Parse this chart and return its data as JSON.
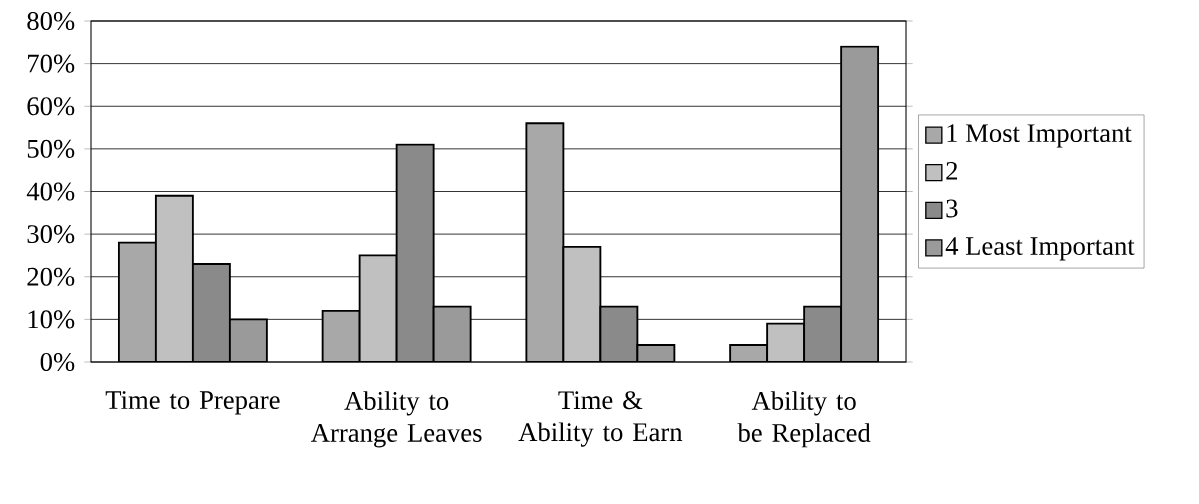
{
  "chart_data": {
    "type": "bar",
    "categories": [
      "Time to Prepare",
      "Ability to Arrange Leaves",
      "Time & Ability to Earn",
      "Ability to be Replaced"
    ],
    "series": [
      {
        "name": "1 Most Important",
        "color": "#a8a8a8",
        "values": [
          28,
          12,
          56,
          4
        ]
      },
      {
        "name": "2",
        "color": "#c0c0c0",
        "values": [
          39,
          25,
          27,
          9
        ]
      },
      {
        "name": "3",
        "color": "#8a8a8a",
        "values": [
          23,
          51,
          13,
          13
        ]
      },
      {
        "name": "4 Least Important",
        "color": "#9a9a9a",
        "values": [
          10,
          13,
          4,
          74
        ]
      }
    ],
    "ylim": [
      0,
      80
    ],
    "yticks": [
      {
        "value": 0,
        "label": "0%"
      },
      {
        "value": 10,
        "label": "10%"
      },
      {
        "value": 20,
        "label": "20%"
      },
      {
        "value": 30,
        "label": "30%"
      },
      {
        "value": 40,
        "label": "40%"
      },
      {
        "value": 50,
        "label": "50%"
      },
      {
        "value": 60,
        "label": "60%"
      },
      {
        "value": 70,
        "label": "70%"
      },
      {
        "value": 80,
        "label": "80%"
      }
    ],
    "grid": "y",
    "legend": "right"
  }
}
